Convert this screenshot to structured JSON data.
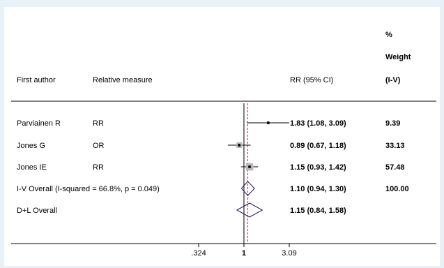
{
  "chart_data": {
    "type": "forest",
    "columns": {
      "author": "First author",
      "measure": "Relative measure",
      "ci": "RR (95% CI)",
      "weight_lines": [
        "%",
        "Weight",
        "(I-V)"
      ]
    },
    "studies": [
      {
        "author": "Parviainen R",
        "measure": "RR",
        "estimate": 1.83,
        "lower": 1.08,
        "upper": 3.09,
        "ci_text": "1.83 (1.08, 3.09)",
        "weight": 9.39,
        "weight_text": "9.39"
      },
      {
        "author": "Jones G",
        "measure": "OR",
        "estimate": 0.89,
        "lower": 0.67,
        "upper": 1.18,
        "ci_text": "0.89 (0.67, 1.18)",
        "weight": 33.13,
        "weight_text": "33.13"
      },
      {
        "author": "Jones IE",
        "measure": "RR",
        "estimate": 1.15,
        "lower": 0.93,
        "upper": 1.42,
        "ci_text": "1.15 (0.93, 1.42)",
        "weight": 57.48,
        "weight_text": "57.48"
      }
    ],
    "pooled": [
      {
        "label": "I-V Overall  (I-squared = 66.8%, p = 0.049)",
        "estimate": 1.1,
        "lower": 0.94,
        "upper": 1.3,
        "ci_text": "1.10 (0.94, 1.30)",
        "weight_text": "100.00"
      },
      {
        "label": "D+L Overall",
        "estimate": 1.15,
        "lower": 0.84,
        "upper": 1.58,
        "ci_text": "1.15 (0.84, 1.58)",
        "weight_text": ""
      }
    ],
    "x_scale": "log",
    "null_value": 1,
    "xlim": [
      0.324,
      3.09
    ],
    "x_ticks": [
      {
        "value": 0.324,
        "label": ".324"
      },
      {
        "value": 1,
        "label": "1"
      },
      {
        "value": 3.09,
        "label": "3.09"
      }
    ],
    "colors": {
      "diamond": "#1a1a6e",
      "overall_line": "#b03050",
      "study_box": "#b8b8b8",
      "point": "#000000"
    }
  }
}
